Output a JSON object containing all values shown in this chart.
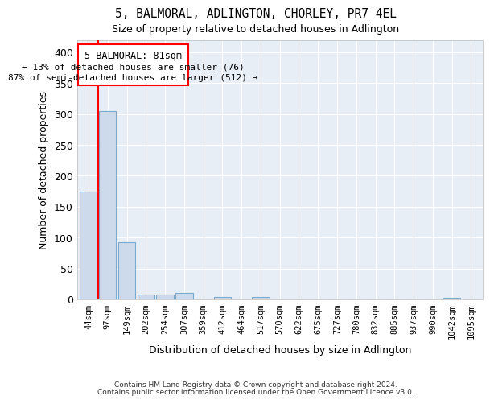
{
  "title": "5, BALMORAL, ADLINGTON, CHORLEY, PR7 4EL",
  "subtitle": "Size of property relative to detached houses in Adlington",
  "xlabel": "Distribution of detached houses by size in Adlington",
  "ylabel": "Number of detached properties",
  "bar_color": "#cddaeb",
  "bar_edge_color": "#7aaad0",
  "background_color": "#e8eef6",
  "grid_color": "#ffffff",
  "categories": [
    "44sqm",
    "97sqm",
    "149sqm",
    "202sqm",
    "254sqm",
    "307sqm",
    "359sqm",
    "412sqm",
    "464sqm",
    "517sqm",
    "570sqm",
    "622sqm",
    "675sqm",
    "727sqm",
    "780sqm",
    "832sqm",
    "885sqm",
    "937sqm",
    "990sqm",
    "1042sqm",
    "1095sqm"
  ],
  "values": [
    175,
    305,
    92,
    8,
    8,
    10,
    0,
    4,
    0,
    4,
    0,
    0,
    0,
    0,
    0,
    0,
    0,
    0,
    0,
    3,
    0
  ],
  "ylim": [
    0,
    420
  ],
  "yticks": [
    0,
    50,
    100,
    150,
    200,
    250,
    300,
    350,
    400
  ],
  "property_label": "5 BALMORAL: 81sqm",
  "annotation_line1": "← 13% of detached houses are smaller (76)",
  "annotation_line2": "87% of semi-detached houses are larger (512) →",
  "footnote1": "Contains HM Land Registry data © Crown copyright and database right 2024.",
  "footnote2": "Contains public sector information licensed under the Open Government Licence v3.0."
}
